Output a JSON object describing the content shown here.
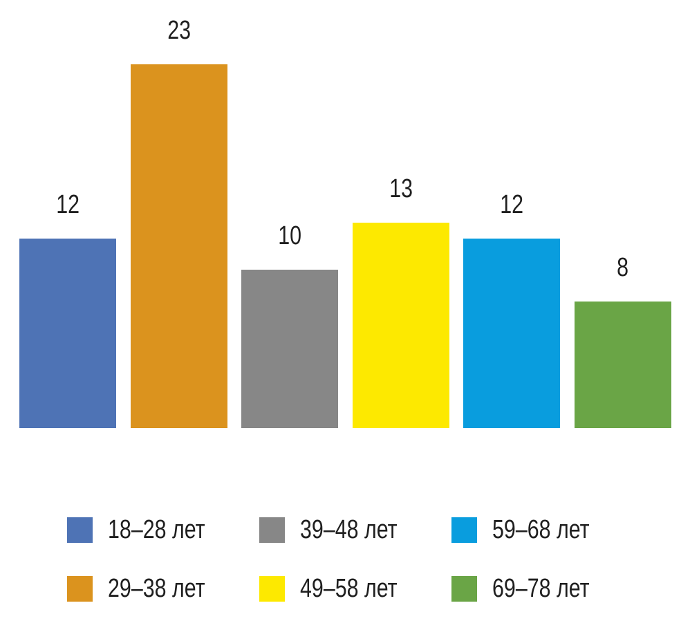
{
  "chart_data": {
    "type": "bar",
    "title": "",
    "xlabel": "",
    "ylabel": "",
    "categories": [
      "18–28 лет",
      "29–38 лет",
      "39–48 лет",
      "49–58 лет",
      "59–68 лет",
      "69–78 лет"
    ],
    "values": [
      12,
      23,
      10,
      13,
      12,
      8
    ],
    "colors": [
      "#4E73B5",
      "#DB931E",
      "#878787",
      "#FDE900",
      "#099DDE",
      "#6AA546"
    ],
    "ylim": [
      0,
      23
    ],
    "grid": false,
    "axes_visible": false,
    "value_labels_shown": true,
    "value_label_color": "#1F1F1F",
    "background_color": "#FFFFFF",
    "legend": {
      "position": "bottom",
      "rows": 2,
      "fill_order": "column",
      "items": [
        {
          "label": "18–28 лет",
          "color": "#4E73B5"
        },
        {
          "label": "29–38 лет",
          "color": "#DB931E"
        },
        {
          "label": "39–48 лет",
          "color": "#878787"
        },
        {
          "label": "49–58 лет",
          "color": "#FDE900"
        },
        {
          "label": "59–68 лет",
          "color": "#099DDE"
        },
        {
          "label": "69–78 лет",
          "color": "#6AA546"
        }
      ]
    }
  }
}
